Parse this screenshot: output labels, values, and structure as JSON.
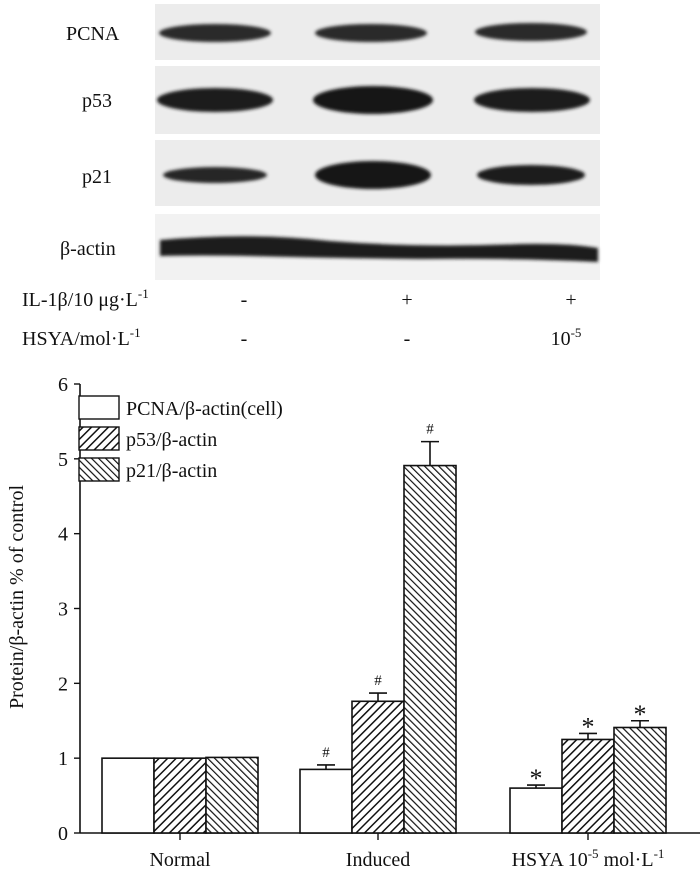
{
  "blot": {
    "rows": [
      {
        "label": "PCNA"
      },
      {
        "label": "p53"
      },
      {
        "label": "p21"
      },
      {
        "label": "β-actin"
      }
    ],
    "treatments": [
      {
        "label": "IL-1β/10 μg·L",
        "sup": "-1",
        "values": [
          "-",
          "+",
          "+"
        ]
      },
      {
        "label": "HSYA/mol·L",
        "sup": "-1",
        "values": [
          "-",
          "-",
          "10"
        ],
        "value_sup": [
          "",
          "",
          "-5"
        ]
      }
    ]
  },
  "chart_data": {
    "type": "bar",
    "ylabel": "Protein/β-actin % of control",
    "ylim": [
      0,
      6
    ],
    "yticks": [
      "0",
      "1",
      "2",
      "3",
      "4",
      "5",
      "6"
    ],
    "categories": [
      {
        "label": "Normal",
        "sup": "",
        "suffix": ""
      },
      {
        "label": "Induced",
        "sup": "",
        "suffix": ""
      },
      {
        "label": "HSYA 10",
        "sup": "-5",
        "suffix": " mol·L",
        "sup2": "-1"
      }
    ],
    "series": [
      {
        "name": "PCNA/β-actin(cell)",
        "values": [
          1.0,
          0.85,
          0.6
        ],
        "errors": [
          0,
          0.06,
          0.04
        ],
        "pattern": "none",
        "markers": [
          "",
          "#",
          "*"
        ]
      },
      {
        "name": "p53/β-actin",
        "values": [
          1.0,
          1.76,
          1.25
        ],
        "errors": [
          0,
          0.11,
          0.08
        ],
        "pattern": "hatch-right",
        "markers": [
          "",
          "#",
          "*"
        ]
      },
      {
        "name": "p21/β-actin",
        "values": [
          1.01,
          4.91,
          1.41
        ],
        "errors": [
          0,
          0.32,
          0.09
        ],
        "pattern": "hatch-left",
        "markers": [
          "",
          "#",
          "*"
        ]
      }
    ],
    "legend_position": "top-left",
    "grid": false
  }
}
